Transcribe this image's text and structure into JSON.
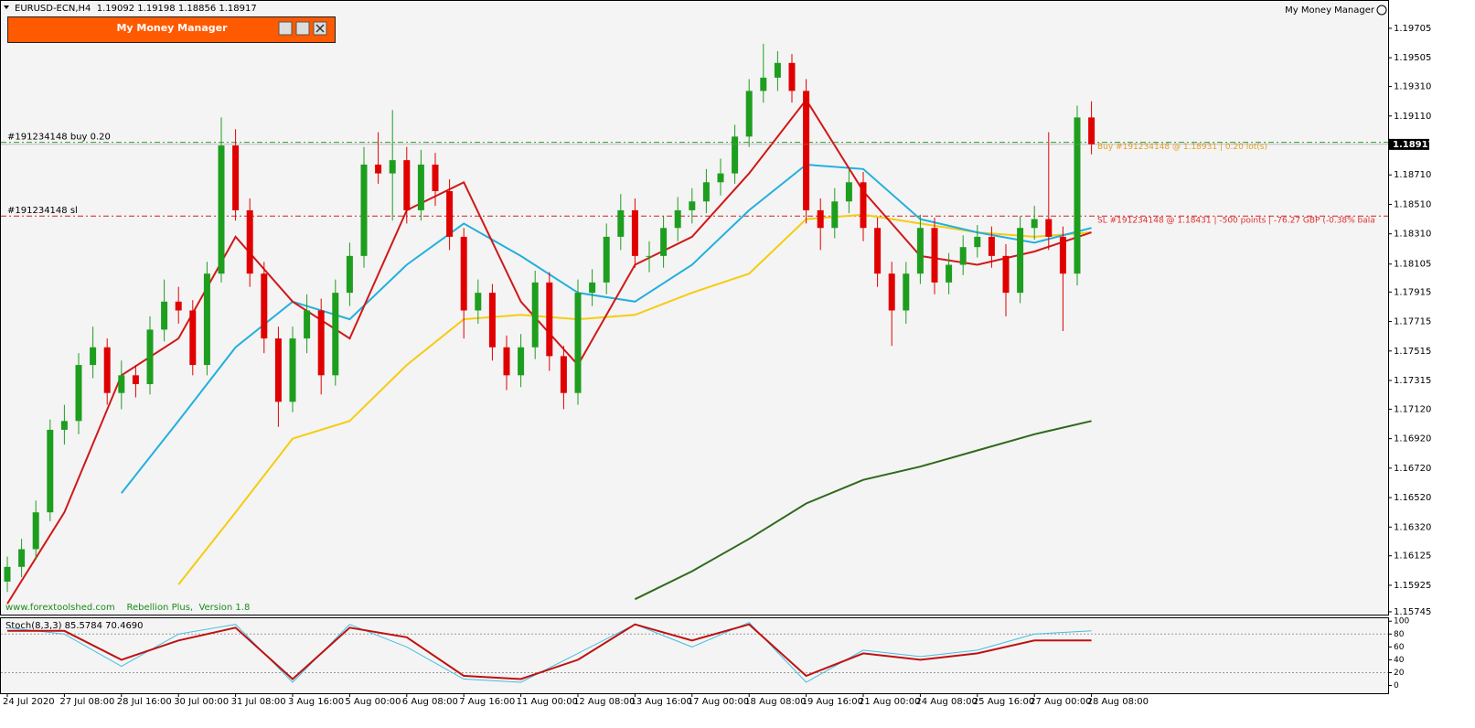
{
  "header": {
    "symbol_info": "EURUSD-ECN,H4  1.19092 1.19198 1.18856 1.18917",
    "indicator_name": "My Money Manager"
  },
  "panel": {
    "title": "My Money Manager"
  },
  "footer_text": "www.forextoolshed.com    Rebellion Plus,  Version 1.8",
  "chart_data": {
    "type": "candlestick",
    "up_color": "#1e9e1e",
    "down_color": "#e00000",
    "ylim": [
      1.15726,
      1.19897
    ],
    "yticks": [
      1.19705,
      1.19505,
      {
        "value": 1.1931,
        "label": "1.19310"
      },
      {
        "value": 1.1911,
        "label": "1.19110"
      },
      {
        "value": 1.1871,
        "label": "1.18710"
      },
      {
        "value": 1.1851,
        "label": "1.18510"
      },
      {
        "value": 1.1831,
        "label": "1.18310"
      },
      1.18105,
      1.17915,
      1.17715,
      1.17515,
      1.17315,
      {
        "value": 1.1712,
        "label": "1.17120"
      },
      {
        "value": 1.1692,
        "label": "1.16920"
      },
      {
        "value": 1.1672,
        "label": "1.16720"
      },
      {
        "value": 1.1652,
        "label": "1.16520"
      },
      {
        "value": 1.1632,
        "label": "1.16320"
      },
      1.16125,
      1.15925,
      1.15745
    ],
    "current_price": 1.18917,
    "x_labels": [
      "24 Jul 2020",
      "27 Jul 08:00",
      "28 Jul 16:00",
      "30 Jul 00:00",
      "31 Jul 08:00",
      "3 Aug 16:00",
      "5 Aug 00:00",
      "6 Aug 08:00",
      "7 Aug 16:00",
      "11 Aug 00:00",
      "12 Aug 08:00",
      "13 Aug 16:00",
      "17 Aug 00:00",
      "18 Aug 08:00",
      "19 Aug 16:00",
      "21 Aug 00:00",
      "24 Aug 08:00",
      "25 Aug 16:00",
      "27 Aug 00:00",
      "28 Aug 08:00"
    ],
    "candles": [
      [
        1.1595,
        1.1612,
        1.1588,
        1.1605
      ],
      [
        1.1605,
        1.1624,
        1.1598,
        1.1617
      ],
      [
        1.1617,
        1.165,
        1.161,
        1.1642
      ],
      [
        1.1642,
        1.1705,
        1.1636,
        1.1698
      ],
      [
        1.1698,
        1.1715,
        1.1688,
        1.1704
      ],
      [
        1.1704,
        1.175,
        1.1695,
        1.1742
      ],
      [
        1.1742,
        1.1768,
        1.1733,
        1.1754
      ],
      [
        1.1754,
        1.176,
        1.1715,
        1.1723
      ],
      [
        1.1723,
        1.1745,
        1.1712,
        1.1735
      ],
      [
        1.1735,
        1.1742,
        1.172,
        1.1729
      ],
      [
        1.1729,
        1.1775,
        1.1722,
        1.1766
      ],
      [
        1.1766,
        1.18,
        1.1758,
        1.1785
      ],
      [
        1.1785,
        1.1795,
        1.177,
        1.1779
      ],
      [
        1.1779,
        1.1786,
        1.1735,
        1.1742
      ],
      [
        1.1742,
        1.1812,
        1.1735,
        1.1804
      ],
      [
        1.1804,
        1.191,
        1.1798,
        1.1891
      ],
      [
        1.1891,
        1.1902,
        1.184,
        1.1847
      ],
      [
        1.1847,
        1.1855,
        1.1795,
        1.1804
      ],
      [
        1.1804,
        1.1812,
        1.175,
        1.176
      ],
      [
        1.176,
        1.1768,
        1.17,
        1.1717
      ],
      [
        1.1717,
        1.1768,
        1.171,
        1.176
      ],
      [
        1.176,
        1.179,
        1.175,
        1.1779
      ],
      [
        1.1779,
        1.1787,
        1.1722,
        1.1735
      ],
      [
        1.1735,
        1.18,
        1.1728,
        1.1791
      ],
      [
        1.1791,
        1.1825,
        1.1782,
        1.1816
      ],
      [
        1.1816,
        1.189,
        1.1808,
        1.1878
      ],
      [
        1.1878,
        1.19,
        1.1865,
        1.1872
      ],
      [
        1.1872,
        1.1915,
        1.184,
        1.1881
      ],
      [
        1.1881,
        1.189,
        1.1838,
        1.1847
      ],
      [
        1.1847,
        1.1888,
        1.184,
        1.1878
      ],
      [
        1.1878,
        1.1886,
        1.185,
        1.186
      ],
      [
        1.186,
        1.1868,
        1.182,
        1.1829
      ],
      [
        1.1829,
        1.1835,
        1.176,
        1.1779
      ],
      [
        1.1779,
        1.18,
        1.177,
        1.1791
      ],
      [
        1.1791,
        1.1797,
        1.1745,
        1.1754
      ],
      [
        1.1754,
        1.1762,
        1.1725,
        1.1735
      ],
      [
        1.1735,
        1.1763,
        1.1727,
        1.1754
      ],
      [
        1.1754,
        1.1806,
        1.1746,
        1.1798
      ],
      [
        1.1798,
        1.1805,
        1.1738,
        1.1748
      ],
      [
        1.1748,
        1.1755,
        1.1712,
        1.1723
      ],
      [
        1.1723,
        1.18,
        1.1715,
        1.1791
      ],
      [
        1.1791,
        1.1807,
        1.1782,
        1.1798
      ],
      [
        1.1798,
        1.1838,
        1.179,
        1.1829
      ],
      [
        1.1829,
        1.1858,
        1.182,
        1.1847
      ],
      [
        1.1847,
        1.1855,
        1.1808,
        1.1816
      ],
      [
        1.1816,
        1.1826,
        1.1805,
        1.1816
      ],
      [
        1.1816,
        1.1843,
        1.1808,
        1.1835
      ],
      [
        1.1835,
        1.1856,
        1.1826,
        1.1847
      ],
      [
        1.1847,
        1.1862,
        1.1838,
        1.1853
      ],
      [
        1.1853,
        1.1875,
        1.1845,
        1.1866
      ],
      [
        1.1866,
        1.1882,
        1.1857,
        1.1872
      ],
      [
        1.1872,
        1.1905,
        1.1865,
        1.1897
      ],
      [
        1.1897,
        1.1936,
        1.189,
        1.1928
      ],
      [
        1.1928,
        1.196,
        1.192,
        1.1937
      ],
      [
        1.1937,
        1.1955,
        1.1928,
        1.1947
      ],
      [
        1.1947,
        1.1953,
        1.192,
        1.1928
      ],
      [
        1.1928,
        1.1936,
        1.1838,
        1.1847
      ],
      [
        1.1847,
        1.1855,
        1.182,
        1.1835
      ],
      [
        1.1835,
        1.1862,
        1.1828,
        1.1853
      ],
      [
        1.1853,
        1.1875,
        1.1845,
        1.1866
      ],
      [
        1.1866,
        1.1873,
        1.1826,
        1.1835
      ],
      [
        1.1835,
        1.1842,
        1.1795,
        1.1804
      ],
      [
        1.1804,
        1.1812,
        1.1755,
        1.1779
      ],
      [
        1.1779,
        1.1812,
        1.177,
        1.1804
      ],
      [
        1.1804,
        1.1844,
        1.1797,
        1.1835
      ],
      [
        1.1835,
        1.1842,
        1.179,
        1.1798
      ],
      [
        1.1798,
        1.1818,
        1.179,
        1.181
      ],
      [
        1.181,
        1.183,
        1.1803,
        1.1822
      ],
      [
        1.1822,
        1.1837,
        1.1815,
        1.1829
      ],
      [
        1.1829,
        1.1836,
        1.1808,
        1.1816
      ],
      [
        1.1816,
        1.1824,
        1.1775,
        1.1791
      ],
      [
        1.1791,
        1.1843,
        1.1784,
        1.1835
      ],
      [
        1.1835,
        1.185,
        1.1827,
        1.1841
      ],
      [
        1.1841,
        1.19,
        1.182,
        1.1829
      ],
      [
        1.1829,
        1.1836,
        1.1765,
        1.1804
      ],
      [
        1.1804,
        1.1918,
        1.1796,
        1.191
      ],
      [
        1.191,
        1.1921,
        1.1885,
        1.18917
      ]
    ],
    "ma_x": [
      0,
      4,
      8,
      12,
      16,
      20,
      24,
      28,
      32,
      36,
      40,
      44,
      48,
      52,
      56,
      60,
      64,
      68,
      72,
      76
    ],
    "moving_averages": [
      {
        "color": "#2e6a1a",
        "values": [
          null,
          null,
          null,
          null,
          null,
          null,
          null,
          null,
          null,
          null,
          null,
          1.1583,
          1.1602,
          1.1624,
          1.1648,
          1.1664,
          1.1673,
          1.1684,
          1.1695,
          1.1704
        ]
      },
      {
        "color": "#f5cc10",
        "values": [
          null,
          null,
          null,
          1.1593,
          1.1642,
          1.1692,
          1.1704,
          1.1742,
          1.1773,
          1.1776,
          1.1773,
          1.1776,
          1.1791,
          1.1804,
          1.1841,
          1.1844,
          1.1838,
          1.1832,
          1.1829,
          1.1832
        ]
      },
      {
        "color": "#22b0dc",
        "values": [
          null,
          null,
          1.1655,
          1.1704,
          1.1754,
          1.1785,
          1.1773,
          1.181,
          1.1838,
          1.1816,
          1.1791,
          1.1785,
          1.181,
          1.1847,
          1.1878,
          1.1875,
          1.1841,
          1.1832,
          1.1825,
          1.1835
        ]
      },
      {
        "color": "#d01818",
        "values": [
          1.158,
          1.1642,
          1.1735,
          1.176,
          1.1829,
          1.1785,
          1.176,
          1.1847,
          1.1866,
          1.1785,
          1.1742,
          1.181,
          1.1829,
          1.1872,
          1.1922,
          1.186,
          1.1816,
          1.181,
          1.1819,
          1.1832
        ]
      }
    ],
    "orders": [
      {
        "label": "#191234148 buy 0.20",
        "price": 1.18931,
        "detail": "Buy #191234148 @ 1.18931 | 0.20 lot(s)",
        "color": "#2e9a2e",
        "text_color": "#e8a020"
      },
      {
        "label": "#191234148 sl",
        "price": 1.18431,
        "detail": "SL #191234148 @ 1.18431 | -500 points | -76.27 GBP (-0.38% bala",
        "color": "#d02020",
        "text_color": "#e03030"
      }
    ],
    "stochastic": {
      "label": "Stoch(8,3,3) 85.5784 70.4690",
      "ylim": [
        -12,
        106
      ],
      "yticks": [
        100,
        80,
        60,
        40,
        20,
        0
      ],
      "levels": [
        80,
        20
      ],
      "series": [
        {
          "color": "#40c0e0",
          "values": [
            90,
            80,
            30,
            80,
            95,
            5,
            95,
            60,
            10,
            5,
            50,
            95,
            60,
            98,
            5,
            55,
            45,
            55,
            80,
            85
          ]
        },
        {
          "color": "#c01010",
          "values": [
            85,
            85,
            40,
            70,
            90,
            10,
            90,
            75,
            15,
            10,
            40,
            95,
            70,
            95,
            15,
            50,
            40,
            50,
            70,
            70
          ]
        }
      ]
    }
  }
}
